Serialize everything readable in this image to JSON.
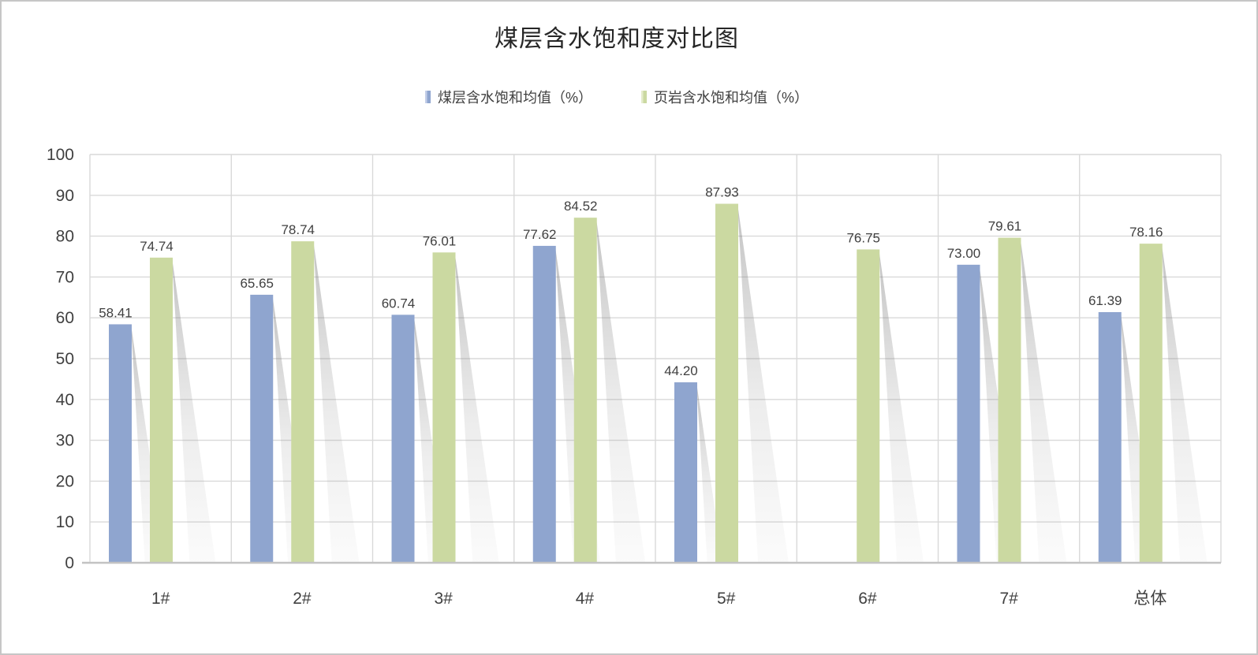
{
  "window": {
    "background_color": "#FFFFFF",
    "border_color": "#C6C6C6"
  },
  "chart_data": {
    "type": "bar",
    "title": "煤层含水饱和度对比图",
    "categories": [
      "1#",
      "2#",
      "3#",
      "4#",
      "5#",
      "6#",
      "7#",
      "总体"
    ],
    "series": [
      {
        "name": "煤层含水饱和均值（%）",
        "color": "#8FA5CF",
        "color_light": "#C3CEE8",
        "values": [
          58.41,
          65.65,
          60.74,
          77.62,
          44.2,
          null,
          73.0,
          61.39
        ]
      },
      {
        "name": "页岩含水饱和均值（%）",
        "color": "#CBD9A1",
        "color_light": "#E4ECCB",
        "values": [
          74.74,
          78.74,
          76.01,
          84.52,
          87.93,
          76.75,
          79.61,
          78.16
        ]
      }
    ],
    "data_labels": [
      "58.41",
      "65.65",
      "60.74",
      "77.62",
      "44.20",
      "73.00",
      "61.39",
      "74.74",
      "78.74",
      "76.01",
      "84.52",
      "87.93",
      "76.75",
      "79.61",
      "78.16"
    ],
    "ylim": [
      0,
      100
    ],
    "y_ticks": [
      0,
      10,
      20,
      30,
      40,
      50,
      60,
      70,
      80,
      90,
      100
    ],
    "grid": "horizontal and vertical category boundaries",
    "legend_position": "top-center",
    "bar_shadow": "gray perspective shadow falling to lower-right",
    "colors": {
      "gridline": "#D9D9D9",
      "axis_line": "#C3C3C3",
      "tick_label": "#404040",
      "data_label": "#404040",
      "title": "#262626",
      "shadow_dark": "#6E6E6E"
    }
  }
}
